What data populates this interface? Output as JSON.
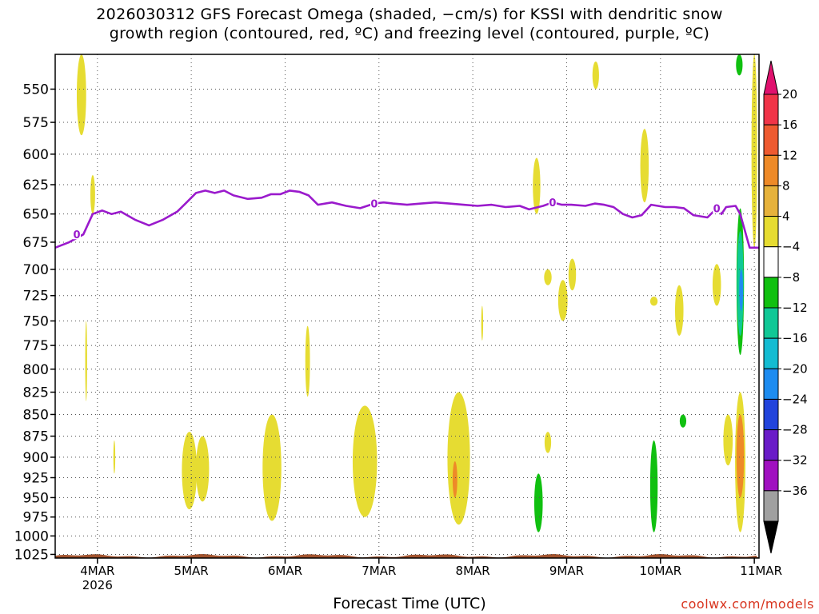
{
  "title": {
    "line1": "2026030312 GFS Forecast Omega (shaded, −cm/s) for KSSI with dendritic snow",
    "line2": "growth region (contoured, red, ºC) and freezing level (contoured, purple, ºC)"
  },
  "credit": "coolwx.com/models",
  "colors": {
    "freezing_line": "#9a1acc",
    "ground": "#a0522d",
    "grid": "#555555"
  },
  "chart_data": {
    "type": "heatmap",
    "title": "2026030312 GFS Forecast Omega (shaded, −cm/s) for KSSI with dendritic snow growth region (contoured, red, ºC) and freezing level (contoured, purple, ºC)",
    "xlabel": "Forecast Time (UTC)",
    "ylabel": "",
    "x_ticks": [
      {
        "label": "4MAR",
        "sub": "2026"
      },
      {
        "label": "5MAR",
        "sub": ""
      },
      {
        "label": "6MAR",
        "sub": ""
      },
      {
        "label": "7MAR",
        "sub": ""
      },
      {
        "label": "8MAR",
        "sub": ""
      },
      {
        "label": "9MAR",
        "sub": ""
      },
      {
        "label": "10MAR",
        "sub": ""
      },
      {
        "label": "11MAR",
        "sub": ""
      }
    ],
    "x_range_days": [
      3.55,
      11.05
    ],
    "y_ticks": [
      550,
      575,
      600,
      625,
      650,
      675,
      700,
      725,
      750,
      775,
      800,
      825,
      850,
      875,
      900,
      925,
      950,
      975,
      1000,
      1025
    ],
    "y_range_hpa": [
      525,
      1030
    ],
    "y_scale": "log-pressure",
    "grid": true,
    "colorbar": {
      "labels": [
        "20",
        "16",
        "12",
        "8",
        "4",
        "−4",
        "−8",
        "−12",
        "−16",
        "−20",
        "−24",
        "−28",
        "−32",
        "−36"
      ],
      "colors": [
        "#f03448",
        "#ee5a30",
        "#ee8a28",
        "#e6b23c",
        "#e6dc32",
        "#ffffff",
        "#10c010",
        "#10c896",
        "#14bcd2",
        "#1e8cf0",
        "#2244dc",
        "#6a1cc8",
        "#a010c0",
        "#a0a0a0"
      ],
      "top_arrow_color": "#e0116e",
      "bottom_arrow_color": "#000000"
    },
    "freezing_level": {
      "label": "0",
      "points": [
        [
          3.55,
          680
        ],
        [
          3.7,
          675
        ],
        [
          3.85,
          668
        ],
        [
          3.95,
          650
        ],
        [
          4.05,
          647
        ],
        [
          4.15,
          650
        ],
        [
          4.25,
          648
        ],
        [
          4.4,
          655
        ],
        [
          4.55,
          660
        ],
        [
          4.7,
          655
        ],
        [
          4.85,
          648
        ],
        [
          4.95,
          640
        ],
        [
          5.05,
          632
        ],
        [
          5.15,
          630
        ],
        [
          5.25,
          632
        ],
        [
          5.35,
          630
        ],
        [
          5.45,
          634
        ],
        [
          5.6,
          637
        ],
        [
          5.75,
          636
        ],
        [
          5.85,
          633
        ],
        [
          5.95,
          633
        ],
        [
          6.05,
          630
        ],
        [
          6.15,
          631
        ],
        [
          6.25,
          634
        ],
        [
          6.35,
          642
        ],
        [
          6.5,
          640
        ],
        [
          6.65,
          643
        ],
        [
          6.8,
          645
        ],
        [
          6.95,
          641
        ],
        [
          7.05,
          640
        ],
        [
          7.15,
          641
        ],
        [
          7.3,
          642
        ],
        [
          7.45,
          641
        ],
        [
          7.6,
          640
        ],
        [
          7.75,
          641
        ],
        [
          7.9,
          642
        ],
        [
          8.05,
          643
        ],
        [
          8.2,
          642
        ],
        [
          8.35,
          644
        ],
        [
          8.5,
          643
        ],
        [
          8.6,
          646
        ],
        [
          8.75,
          643
        ],
        [
          8.85,
          640
        ],
        [
          8.95,
          642
        ],
        [
          9.05,
          642
        ],
        [
          9.2,
          643
        ],
        [
          9.3,
          641
        ],
        [
          9.4,
          642
        ],
        [
          9.5,
          644
        ],
        [
          9.6,
          650
        ],
        [
          9.7,
          653
        ],
        [
          9.8,
          651
        ],
        [
          9.9,
          642
        ],
        [
          10.05,
          644
        ],
        [
          10.15,
          644
        ],
        [
          10.25,
          645
        ],
        [
          10.35,
          651
        ],
        [
          10.5,
          653
        ],
        [
          10.6,
          645
        ],
        [
          10.65,
          650
        ],
        [
          10.7,
          644
        ],
        [
          10.8,
          643
        ],
        [
          10.85,
          650
        ],
        [
          10.95,
          680
        ],
        [
          11.05,
          680
        ]
      ]
    },
    "omega_regions": [
      {
        "color": "#e6dc32",
        "day": 3.83,
        "p_top": 525,
        "p_bot": 585,
        "width": 0.1
      },
      {
        "color": "#e6dc32",
        "day": 3.95,
        "p_top": 617,
        "p_bot": 650,
        "width": 0.05
      },
      {
        "color": "#e6dc32",
        "day": 3.88,
        "p_top": 750,
        "p_bot": 835,
        "width": 0.02
      },
      {
        "color": "#e6dc32",
        "day": 4.18,
        "p_top": 880,
        "p_bot": 920,
        "width": 0.02
      },
      {
        "color": "#e6dc32",
        "day": 4.98,
        "p_top": 870,
        "p_bot": 965,
        "width": 0.16
      },
      {
        "color": "#e6dc32",
        "day": 5.12,
        "p_top": 875,
        "p_bot": 955,
        "width": 0.14
      },
      {
        "color": "#e6dc32",
        "day": 5.86,
        "p_top": 850,
        "p_bot": 980,
        "width": 0.2
      },
      {
        "color": "#e6dc32",
        "day": 6.24,
        "p_top": 755,
        "p_bot": 830,
        "width": 0.05
      },
      {
        "color": "#e6dc32",
        "day": 6.85,
        "p_top": 840,
        "p_bot": 975,
        "width": 0.26
      },
      {
        "color": "#e6dc32",
        "day": 7.85,
        "p_top": 825,
        "p_bot": 985,
        "width": 0.24
      },
      {
        "color": "#ee8a28",
        "day": 7.81,
        "p_top": 905,
        "p_bot": 950,
        "width": 0.05
      },
      {
        "color": "#e6dc32",
        "day": 8.1,
        "p_top": 735,
        "p_bot": 770,
        "width": 0.02
      },
      {
        "color": "#e6dc32",
        "day": 8.68,
        "p_top": 603,
        "p_bot": 650,
        "width": 0.08
      },
      {
        "color": "#10c010",
        "day": 8.7,
        "p_top": 920,
        "p_bot": 995,
        "width": 0.09
      },
      {
        "color": "#e6dc32",
        "day": 8.8,
        "p_top": 700,
        "p_bot": 715,
        "width": 0.08
      },
      {
        "color": "#e6dc32",
        "day": 8.8,
        "p_top": 870,
        "p_bot": 895,
        "width": 0.07
      },
      {
        "color": "#e6dc32",
        "day": 8.96,
        "p_top": 710,
        "p_bot": 750,
        "width": 0.1
      },
      {
        "color": "#e6dc32",
        "day": 9.06,
        "p_top": 690,
        "p_bot": 720,
        "width": 0.08
      },
      {
        "color": "#e6dc32",
        "day": 9.31,
        "p_top": 530,
        "p_bot": 550,
        "width": 0.07
      },
      {
        "color": "#e6dc32",
        "day": 9.83,
        "p_top": 580,
        "p_bot": 640,
        "width": 0.09
      },
      {
        "color": "#10c010",
        "day": 9.93,
        "p_top": 880,
        "p_bot": 995,
        "width": 0.08
      },
      {
        "color": "#e6dc32",
        "day": 9.93,
        "p_top": 726,
        "p_bot": 735,
        "width": 0.08
      },
      {
        "color": "#e6dc32",
        "day": 10.2,
        "p_top": 715,
        "p_bot": 765,
        "width": 0.09
      },
      {
        "color": "#10c010",
        "day": 10.24,
        "p_top": 850,
        "p_bot": 865,
        "width": 0.07
      },
      {
        "color": "#e6dc32",
        "day": 10.6,
        "p_top": 695,
        "p_bot": 735,
        "width": 0.09
      },
      {
        "color": "#e6dc32",
        "day": 10.72,
        "p_top": 850,
        "p_bot": 910,
        "width": 0.1
      },
      {
        "color": "#e6dc32",
        "day": 10.85,
        "p_top": 825,
        "p_bot": 995,
        "width": 0.11
      },
      {
        "color": "#ee8a28",
        "day": 10.85,
        "p_top": 850,
        "p_bot": 950,
        "width": 0.08
      },
      {
        "color": "#10c010",
        "day": 10.85,
        "p_top": 645,
        "p_bot": 785,
        "width": 0.08
      },
      {
        "color": "#10c896",
        "day": 10.85,
        "p_top": 665,
        "p_bot": 765,
        "width": 0.07
      },
      {
        "color": "#1e8cf0",
        "day": 10.86,
        "p_top": 700,
        "p_bot": 740,
        "width": 0.04
      },
      {
        "color": "#10c010",
        "day": 10.84,
        "p_top": 525,
        "p_bot": 540,
        "width": 0.07
      },
      {
        "color": "#e6dc32",
        "day": 11.0,
        "p_top": 525,
        "p_bot": 680,
        "width": 0.06
      }
    ]
  }
}
